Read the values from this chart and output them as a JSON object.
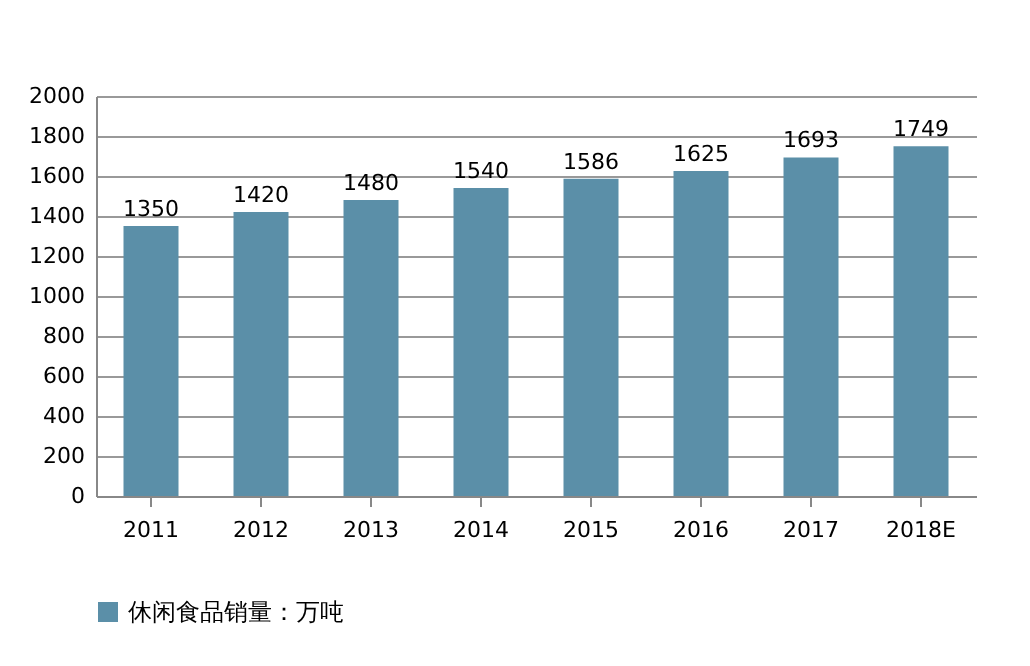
{
  "chart_data": {
    "type": "bar",
    "categories": [
      "2011",
      "2012",
      "2013",
      "2014",
      "2015",
      "2016",
      "2017",
      "2018E"
    ],
    "series": [
      {
        "name": "休闲食品销量：万吨",
        "color": "#5b8fa8",
        "values": [
          1350,
          1420,
          1480,
          1540,
          1586,
          1625,
          1693,
          1749
        ]
      }
    ],
    "ylim": [
      0,
      2000
    ],
    "yticks": [
      0,
      200,
      400,
      600,
      800,
      1000,
      1200,
      1400,
      1600,
      1800,
      2000
    ],
    "grid": "y",
    "legend": "bottom",
    "data_labels": true
  }
}
